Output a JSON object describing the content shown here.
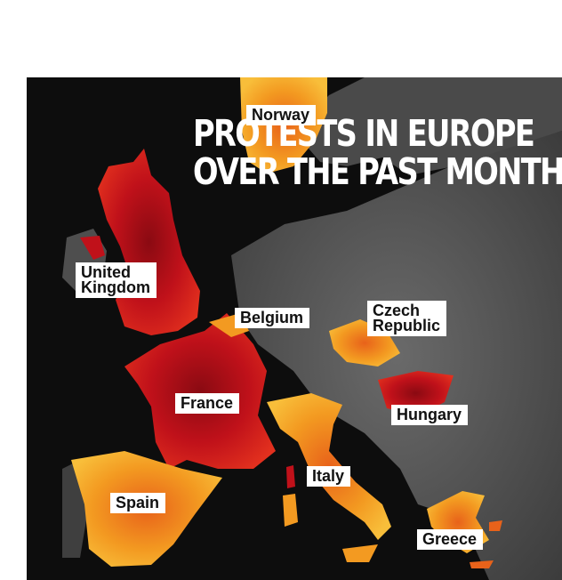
{
  "title": {
    "line1": "PROTESTS IN EUROPE",
    "line2": "OVER THE PAST MONTH"
  },
  "countries": {
    "norway": "Norway",
    "uk_line1": "United",
    "uk_line2": "Kingdom",
    "belgium": "Belgium",
    "czech_line1": "Czech",
    "czech_line2": "Republic",
    "france": "France",
    "hungary": "Hungary",
    "italy": "Italy",
    "spain": "Spain",
    "greece": "Greece"
  },
  "colors": {
    "background": "#0d0d0d",
    "land": "#5a5a5a",
    "protest_high": "#c0111a",
    "protest_mid": "#e8621a",
    "protest_low": "#f6a623"
  }
}
